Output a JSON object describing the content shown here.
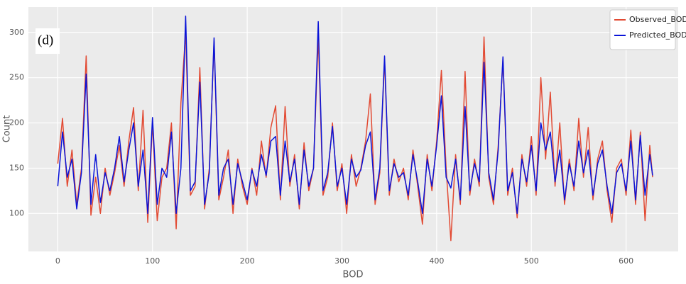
{
  "chart_data": {
    "type": "line",
    "annotation": "(d)",
    "xlabel": "BOD",
    "ylabel": "Count",
    "x": [
      0,
      5,
      10,
      15,
      20,
      25,
      30,
      35,
      40,
      45,
      50,
      55,
      60,
      65,
      70,
      75,
      80,
      85,
      90,
      95,
      100,
      105,
      110,
      115,
      120,
      125,
      130,
      135,
      140,
      145,
      150,
      155,
      160,
      165,
      170,
      175,
      180,
      185,
      190,
      195,
      200,
      205,
      210,
      215,
      220,
      225,
      230,
      235,
      240,
      245,
      250,
      255,
      260,
      265,
      270,
      275,
      280,
      285,
      290,
      295,
      300,
      305,
      310,
      315,
      320,
      325,
      330,
      335,
      340,
      345,
      350,
      355,
      360,
      365,
      370,
      375,
      380,
      385,
      390,
      395,
      400,
      405,
      410,
      415,
      420,
      425,
      430,
      435,
      440,
      445,
      450,
      455,
      460,
      465,
      470,
      475,
      480,
      485,
      490,
      495,
      500,
      505,
      510,
      515,
      520,
      525,
      530,
      535,
      540,
      545,
      550,
      555,
      560,
      565,
      570,
      575,
      580,
      585,
      590,
      595,
      600,
      605,
      610,
      615,
      620,
      625,
      628
    ],
    "series": [
      {
        "name": "Observed_BOD",
        "color": "#e24a33",
        "values": [
          155,
          205,
          130,
          170,
          110,
          150,
          274,
          98,
          140,
          100,
          150,
          120,
          145,
          175,
          130,
          180,
          217,
          125,
          214,
          90,
          200,
          92,
          140,
          150,
          200,
          83,
          222,
          300,
          120,
          130,
          261,
          105,
          150,
          290,
          115,
          140,
          170,
          100,
          160,
          130,
          110,
          150,
          120,
          180,
          140,
          195,
          219,
          115,
          218,
          130,
          165,
          105,
          178,
          125,
          150,
          295,
          120,
          140,
          200,
          125,
          155,
          100,
          165,
          130,
          150,
          180,
          232,
          110,
          145,
          270,
          120,
          160,
          135,
          150,
          115,
          170,
          130,
          88,
          165,
          125,
          180,
          258,
          150,
          70,
          165,
          110,
          257,
          120,
          160,
          130,
          295,
          140,
          110,
          175,
          270,
          120,
          150,
          95,
          165,
          130,
          185,
          120,
          250,
          160,
          234,
          130,
          200,
          110,
          160,
          125,
          205,
          140,
          195,
          115,
          160,
          180,
          125,
          90,
          150,
          160,
          120,
          192,
          110,
          190,
          92,
          175,
          140
        ]
      },
      {
        "name": "Predicted_BOD",
        "color": "#0a14d8",
        "values": [
          130,
          190,
          140,
          160,
          105,
          145,
          254,
          110,
          165,
          112,
          145,
          125,
          150,
          185,
          135,
          170,
          200,
          130,
          170,
          100,
          206,
          110,
          150,
          140,
          190,
          100,
          150,
          318,
          125,
          135,
          245,
          110,
          145,
          294,
          120,
          150,
          160,
          110,
          155,
          135,
          115,
          148,
          130,
          165,
          142,
          180,
          185,
          120,
          180,
          135,
          160,
          110,
          170,
          130,
          150,
          312,
          125,
          145,
          196,
          130,
          150,
          110,
          160,
          140,
          148,
          175,
          190,
          115,
          150,
          274,
          125,
          155,
          140,
          145,
          120,
          165,
          135,
          100,
          160,
          130,
          175,
          230,
          140,
          128,
          160,
          115,
          218,
          125,
          155,
          135,
          267,
          145,
          115,
          170,
          273,
          125,
          145,
          100,
          160,
          135,
          175,
          125,
          200,
          170,
          190,
          135,
          170,
          115,
          155,
          130,
          180,
          145,
          170,
          120,
          155,
          170,
          130,
          100,
          145,
          155,
          125,
          180,
          115,
          186,
          120,
          165,
          142
        ]
      }
    ],
    "xlim": [
      -31,
      655
    ],
    "ylim": [
      58,
      328
    ],
    "xticks": [
      0,
      100,
      200,
      300,
      400,
      500,
      600
    ],
    "yticks": [
      100,
      150,
      200,
      250,
      300
    ],
    "grid": true,
    "legend": "upper right"
  }
}
